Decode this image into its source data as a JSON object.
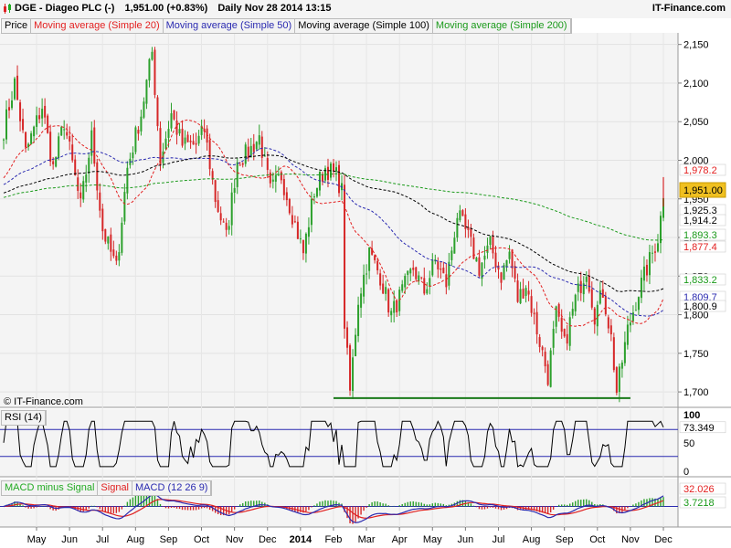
{
  "header": {
    "symbol": "DGE - Diageo PLC (-)",
    "quote": "1,951.00 (+0.83%)",
    "period": "Daily  Nov 28 2014 13:15",
    "brand": "IT-Finance.com"
  },
  "legend": [
    {
      "label": "Price",
      "color": "#000000"
    },
    {
      "label": "Moving average (Simple 20)",
      "color": "#e32020"
    },
    {
      "label": "Moving average (Simple 50)",
      "color": "#2a2ab0"
    },
    {
      "label": "Moving average (Simple 100)",
      "color": "#000000"
    },
    {
      "label": "Moving average (Simple 200)",
      "color": "#1a9a1a"
    }
  ],
  "copyright": "© IT-Finance.com",
  "rsi_legend": "RSI (14)",
  "macd_legend": [
    {
      "label": "MACD minus Signal",
      "color": "#22aa22"
    },
    {
      "label": "Signal",
      "color": "#e02020"
    },
    {
      "label": "MACD (12 26 9)",
      "color": "#2a2ab0"
    }
  ],
  "chart_data": [
    {
      "type": "candlestick",
      "title": "DGE - Diageo PLC (-)",
      "ylim": [
        1680,
        2165
      ],
      "yticks": [
        1700,
        1750,
        1800,
        1850,
        1900,
        1950,
        2000,
        2050,
        2100,
        2150
      ],
      "ytick_labels": [
        "1,700",
        "1,750",
        "1,800",
        "1,850",
        "1,900",
        "1,950",
        "2,000",
        "2,050",
        "2,100",
        "2,150"
      ],
      "x_labels": [
        "May",
        "Jun",
        "Jul",
        "Aug",
        "Sep",
        "Oct",
        "Nov",
        "Dec",
        "2014",
        "Feb",
        "Mar",
        "Apr",
        "May",
        "Jun",
        "Jul",
        "Aug",
        "Sep",
        "Oct",
        "Nov",
        "Dec"
      ],
      "price_keypoints": [
        [
          0,
          2040
        ],
        [
          4,
          2100
        ],
        [
          8,
          2010
        ],
        [
          14,
          2070
        ],
        [
          18,
          1990
        ],
        [
          22,
          2050
        ],
        [
          28,
          1940
        ],
        [
          32,
          2030
        ],
        [
          36,
          1910
        ],
        [
          41,
          1860
        ],
        [
          45,
          1990
        ],
        [
          50,
          2060
        ],
        [
          54,
          2140
        ],
        [
          57,
          2000
        ],
        [
          61,
          2060
        ],
        [
          65,
          2020
        ],
        [
          70,
          2020
        ],
        [
          73,
          2040
        ],
        [
          77,
          1950
        ],
        [
          81,
          1900
        ],
        [
          85,
          2000
        ],
        [
          89,
          2010
        ],
        [
          93,
          2030
        ],
        [
          97,
          1960
        ],
        [
          101,
          1980
        ],
        [
          105,
          1930
        ],
        [
          109,
          1880
        ],
        [
          113,
          1960
        ],
        [
          117,
          1990
        ],
        [
          121,
          1980
        ],
        [
          123,
          1960
        ],
        [
          124,
          1790
        ],
        [
          126,
          1700
        ],
        [
          129,
          1820
        ],
        [
          133,
          1880
        ],
        [
          137,
          1850
        ],
        [
          141,
          1800
        ],
        [
          145,
          1830
        ],
        [
          149,
          1860
        ],
        [
          153,
          1830
        ],
        [
          157,
          1870
        ],
        [
          161,
          1840
        ],
        [
          165,
          1930
        ],
        [
          169,
          1900
        ],
        [
          173,
          1860
        ],
        [
          177,
          1890
        ],
        [
          181,
          1850
        ],
        [
          184,
          1880
        ],
        [
          187,
          1820
        ],
        [
          190,
          1840
        ],
        [
          194,
          1780
        ],
        [
          198,
          1720
        ],
        [
          201,
          1800
        ],
        [
          204,
          1760
        ],
        [
          208,
          1820
        ],
        [
          212,
          1860
        ],
        [
          215,
          1800
        ],
        [
          218,
          1830
        ],
        [
          221,
          1770
        ],
        [
          223,
          1700
        ],
        [
          227,
          1780
        ],
        [
          231,
          1830
        ],
        [
          235,
          1870
        ],
        [
          238,
          1900
        ],
        [
          240,
          1951
        ]
      ],
      "last_spike": 1978.2,
      "support_line": {
        "y": 1692,
        "x_range_pct": [
          0.5,
          0.95
        ]
      },
      "value_labels": [
        {
          "value": "1,978.2",
          "color": "#e32020"
        },
        {
          "value": "1,951.00",
          "color": "#000000",
          "highlight": true
        },
        {
          "value": "1,925.3",
          "color": "#000000"
        },
        {
          "value": "1,914.2",
          "color": "#000000"
        },
        {
          "value": "1,893.3",
          "color": "#1a9a1a"
        },
        {
          "value": "1,877.4",
          "color": "#e32020"
        },
        {
          "value": "1,833.2",
          "color": "#1a9a1a"
        },
        {
          "value": "1,809.7",
          "color": "#2a2ab0"
        },
        {
          "value": "1,800.9",
          "color": "#000000"
        }
      ]
    },
    {
      "type": "line",
      "title": "RSI (14)",
      "ylim": [
        0,
        100
      ],
      "yticks": [
        0,
        50,
        100
      ],
      "levels": [
        30,
        70
      ],
      "last_value": "73.349"
    },
    {
      "type": "bar+line",
      "title": "MACD (12 26 9)",
      "series": [
        {
          "name": "MACD minus Signal",
          "type": "histogram"
        },
        {
          "name": "Signal",
          "type": "line"
        },
        {
          "name": "MACD (12 26 9)",
          "type": "line"
        }
      ],
      "last_values": [
        {
          "value": "32.026",
          "color": "#e32020"
        },
        {
          "value": "3.7218",
          "color": "#1a9a1a"
        }
      ]
    }
  ]
}
